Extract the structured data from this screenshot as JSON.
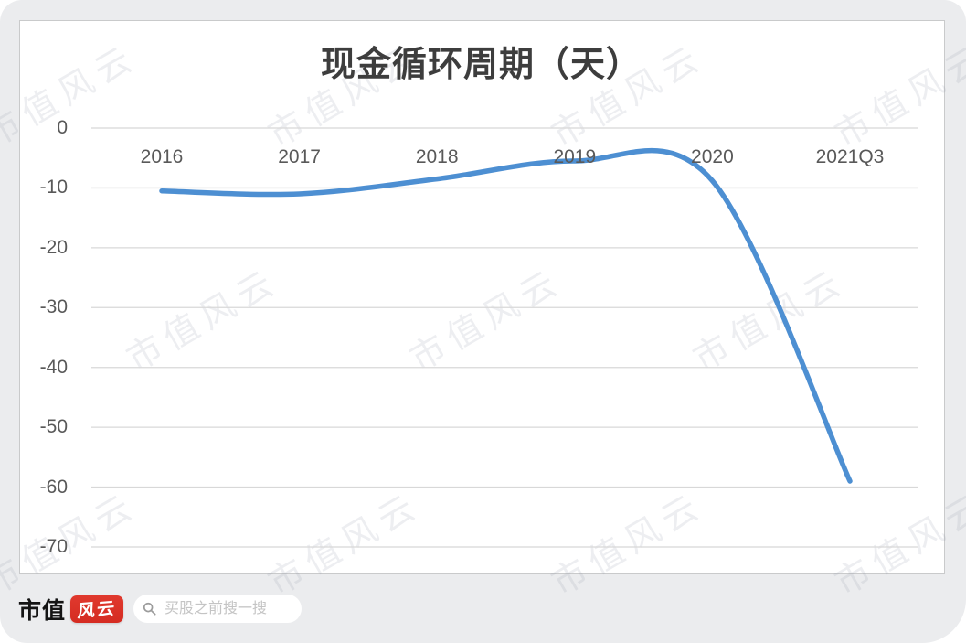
{
  "watermark": {
    "text": "市值风云"
  },
  "chart_data": {
    "type": "line",
    "title": "现金循环周期（天）",
    "categories": [
      "2016",
      "2017",
      "2018",
      "2019",
      "2020",
      "2021Q3"
    ],
    "values": [
      -10.5,
      -11,
      -8.5,
      -5.5,
      -8.8,
      -59
    ],
    "yticks": [
      0,
      -10,
      -20,
      -30,
      -40,
      -50,
      -60,
      -70
    ],
    "ylim": [
      -70,
      0
    ],
    "xlabel": "",
    "ylabel": "",
    "grid": true,
    "legend": false,
    "line_color": "#4d8fd2",
    "gridline_color": "#d8d8d8",
    "tick_label_color": "#595959"
  },
  "footer": {
    "logo_text": "市值",
    "logo_badge": "风云",
    "search_placeholder": "买股之前搜一搜",
    "brand_red": "#e0392e"
  }
}
